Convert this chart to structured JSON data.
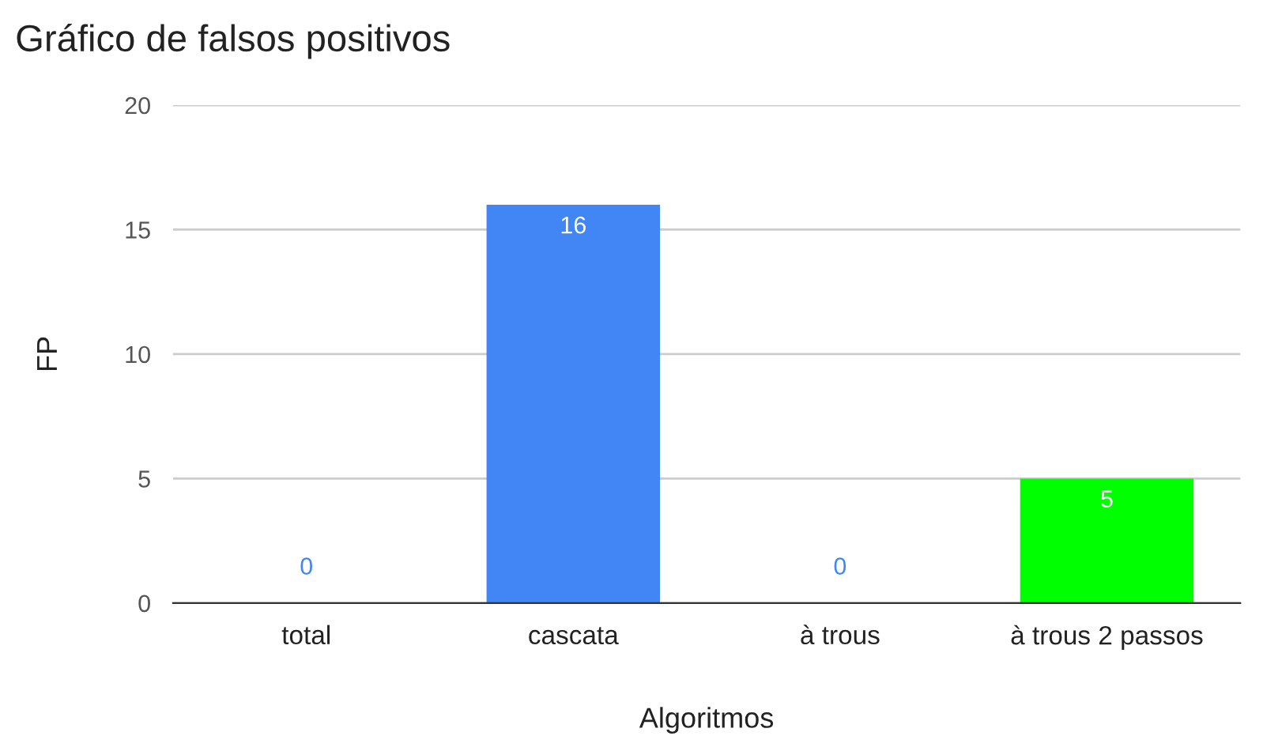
{
  "chart_data": {
    "type": "bar",
    "title": "Gráfico de falsos positivos",
    "xlabel": "Algoritmos",
    "ylabel": "FP",
    "categories": [
      "total",
      "cascata",
      "à trous",
      "à trous 2 passos"
    ],
    "values": [
      0,
      16,
      0,
      5
    ],
    "colors": [
      "#4285f4",
      "#4285f4",
      "#4285f4",
      "#00ff00"
    ],
    "ylim": [
      0,
      20
    ],
    "yticks": [
      0,
      5,
      10,
      15,
      20
    ],
    "grid": "y",
    "data_labels": true,
    "legend": false
  }
}
